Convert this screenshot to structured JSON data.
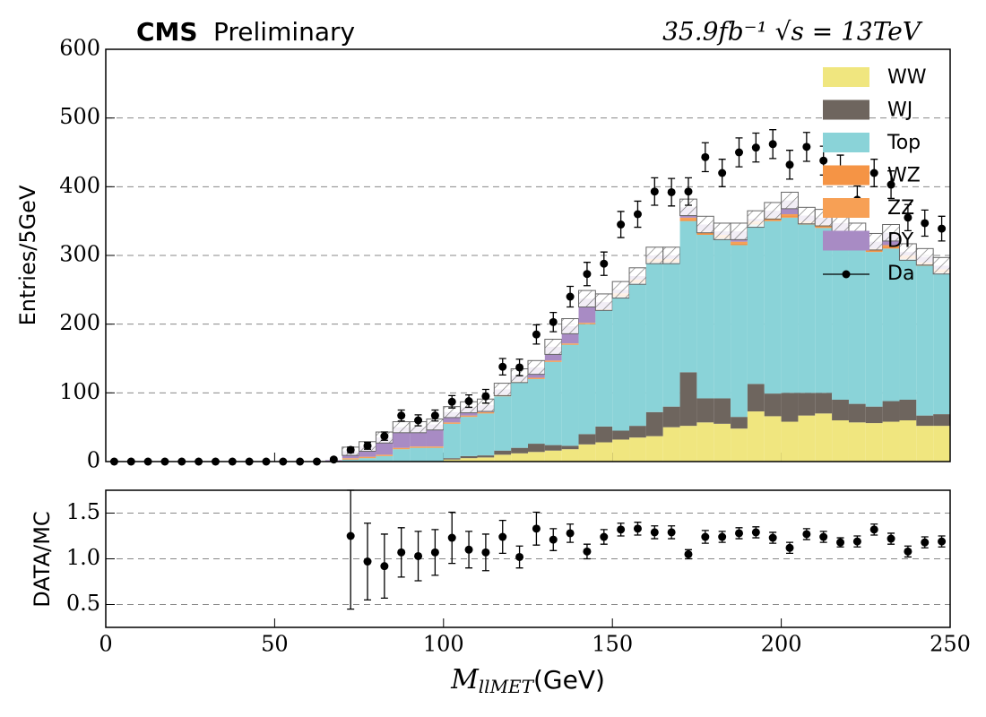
{
  "chart_data": [
    {
      "type": "stacked_histogram",
      "title_bold": "CMS",
      "title": "Preliminary",
      "lumi_label": "35.9fb⁻¹ √s = 13TeV",
      "ylabel": "Entries/5GeV",
      "bins": [
        0,
        5,
        10,
        15,
        20,
        25,
        30,
        35,
        40,
        45,
        50,
        55,
        60,
        65,
        70,
        75,
        80,
        85,
        90,
        95,
        100,
        105,
        110,
        115,
        120,
        125,
        130,
        135,
        140,
        145,
        150,
        155,
        160,
        165,
        170,
        175,
        180,
        185,
        190,
        195,
        200,
        205,
        210,
        215,
        220,
        225,
        230,
        235,
        240,
        245,
        250
      ],
      "ylim": [
        0,
        600
      ],
      "yticks": [
        0,
        100,
        200,
        300,
        400,
        500,
        600
      ],
      "grid": true,
      "legend": "upper right",
      "series": [
        {
          "name": "WW",
          "color": "#f0e67f",
          "values": [
            0,
            0,
            0,
            0,
            0,
            0,
            0,
            0,
            0,
            0,
            0,
            0,
            0,
            0,
            0,
            0,
            0,
            0,
            0,
            0,
            3,
            5,
            6,
            10,
            12,
            14,
            16,
            18,
            25,
            28,
            32,
            35,
            37,
            50,
            52,
            57,
            55,
            48,
            73,
            66,
            58,
            67,
            70,
            60,
            57,
            56,
            58,
            60,
            52,
            52
          ]
        },
        {
          "name": "WJ",
          "color": "#6e655e",
          "values": [
            0,
            0,
            0,
            0,
            0,
            0,
            0,
            0,
            0,
            0,
            0,
            0,
            0,
            0,
            0,
            0,
            0,
            0,
            0,
            0,
            2,
            3,
            3,
            6,
            8,
            12,
            8,
            5,
            15,
            23,
            13,
            17,
            35,
            30,
            78,
            35,
            37,
            17,
            40,
            33,
            42,
            33,
            30,
            30,
            27,
            24,
            30,
            30,
            15,
            17
          ]
        },
        {
          "name": "Top",
          "color": "#8ad3d8",
          "values": [
            0,
            0,
            0,
            0,
            0,
            0,
            0,
            0,
            0,
            0,
            0,
            0,
            0,
            0,
            3,
            5,
            8,
            18,
            20,
            20,
            50,
            57,
            61,
            79,
            95,
            94,
            121,
            147,
            160,
            169,
            195,
            208,
            218,
            210,
            220,
            238,
            233,
            250,
            232,
            251,
            255,
            245,
            240,
            240,
            226,
            225,
            222,
            205,
            218,
            206
          ]
        },
        {
          "name": "WZ",
          "color": "#f59445",
          "values": [
            0,
            0,
            0,
            0,
            0,
            0,
            0,
            0,
            0,
            0,
            0,
            0,
            0,
            0,
            1,
            1,
            1,
            1,
            1,
            1,
            1,
            1,
            1,
            1,
            1,
            1,
            1,
            1,
            1,
            1,
            3,
            3,
            3,
            3,
            3,
            3,
            3,
            3,
            3,
            3,
            3,
            3,
            3,
            3,
            3,
            3,
            3,
            3,
            3,
            3
          ]
        },
        {
          "name": "ZZ",
          "color": "#f7a055",
          "values": [
            0,
            0,
            0,
            0,
            0,
            0,
            0,
            0,
            0,
            0,
            0,
            0,
            0,
            0,
            1,
            1,
            1,
            1,
            1,
            1,
            1,
            1,
            1,
            1,
            1,
            1,
            1,
            1,
            1,
            1,
            2,
            2,
            2,
            2,
            2,
            2,
            2,
            2,
            2,
            2,
            2,
            2,
            2,
            2,
            2,
            2,
            2,
            2,
            2,
            2
          ]
        },
        {
          "name": "DY",
          "color": "#a88bc4",
          "values": [
            0,
            0,
            0,
            0,
            0,
            0,
            0,
            0,
            0,
            0,
            0,
            0,
            0,
            2,
            10,
            15,
            25,
            30,
            28,
            32,
            15,
            12,
            10,
            8,
            8,
            15,
            20,
            25,
            35,
            10,
            5,
            5,
            5,
            5,
            15,
            10,
            5,
            15,
            3,
            10,
            20,
            8,
            10,
            12,
            20,
            10,
            18,
            5,
            8,
            5
          ]
        }
      ],
      "uncertainty": [
        0,
        0,
        0,
        0,
        0,
        0,
        0,
        0,
        0,
        0,
        0,
        0,
        0,
        0,
        6,
        7,
        8,
        8,
        8,
        8,
        8,
        8,
        9,
        9,
        10,
        10,
        11,
        11,
        12,
        12,
        12,
        12,
        12,
        12,
        12,
        12,
        12,
        12,
        12,
        12,
        12,
        12,
        12,
        12,
        12,
        12,
        12,
        12,
        12,
        12
      ],
      "data": {
        "name": "Da",
        "color": "#000000",
        "values": [
          0,
          0,
          0,
          0,
          0,
          0,
          0,
          0,
          0,
          0,
          0,
          0,
          0,
          3,
          17,
          23,
          37,
          67,
          60,
          67,
          87,
          88,
          95,
          138,
          137,
          185,
          203,
          240,
          273,
          288,
          345,
          360,
          393,
          392,
          393,
          443,
          420,
          450,
          457,
          462,
          432,
          458,
          438,
          425,
          381,
          420,
          403,
          355,
          347,
          339
        ],
        "errors": [
          0,
          0,
          0,
          0,
          0,
          0,
          0,
          0,
          0,
          0,
          0,
          0,
          0,
          2,
          4,
          5,
          6,
          8,
          8,
          8,
          9,
          9,
          10,
          12,
          12,
          14,
          14,
          15,
          17,
          17,
          19,
          19,
          20,
          20,
          20,
          21,
          20,
          21,
          21,
          21,
          21,
          21,
          21,
          21,
          20,
          20,
          20,
          19,
          19,
          18
        ]
      }
    },
    {
      "type": "ratio",
      "ylabel": "DATA/MC",
      "xlabel_main": "M",
      "xlabel_sub": "llMET",
      "xlabel_unit": "(GeV)",
      "xlim": [
        0,
        250
      ],
      "xticks": [
        0,
        50,
        100,
        150,
        200,
        250
      ],
      "ylim": [
        0.25,
        1.75
      ],
      "yticks": [
        0.5,
        {
          "value": 1,
          "label": "1.0"
        },
        1.5
      ],
      "grid": true,
      "color": "#000000",
      "values": [
        null,
        null,
        null,
        null,
        null,
        null,
        null,
        null,
        null,
        null,
        null,
        null,
        null,
        null,
        1.25,
        0.97,
        0.92,
        1.07,
        1.03,
        1.07,
        1.23,
        1.1,
        1.07,
        1.24,
        1.02,
        1.33,
        1.21,
        1.28,
        1.08,
        1.24,
        1.32,
        1.33,
        1.29,
        1.29,
        1.05,
        1.24,
        1.24,
        1.28,
        1.29,
        1.23,
        1.12,
        1.27,
        1.24,
        1.18,
        1.19,
        1.32,
        1.22,
        1.08,
        1.18,
        1.19
      ],
      "errors": [
        null,
        null,
        null,
        null,
        null,
        null,
        null,
        null,
        null,
        null,
        null,
        null,
        null,
        null,
        0.8,
        0.42,
        0.35,
        0.27,
        0.27,
        0.25,
        0.28,
        0.2,
        0.2,
        0.18,
        0.12,
        0.18,
        0.12,
        0.1,
        0.08,
        0.08,
        0.07,
        0.07,
        0.07,
        0.07,
        0.05,
        0.07,
        0.06,
        0.06,
        0.06,
        0.06,
        0.06,
        0.06,
        0.06,
        0.05,
        0.06,
        0.06,
        0.06,
        0.06,
        0.06,
        0.06
      ]
    }
  ]
}
